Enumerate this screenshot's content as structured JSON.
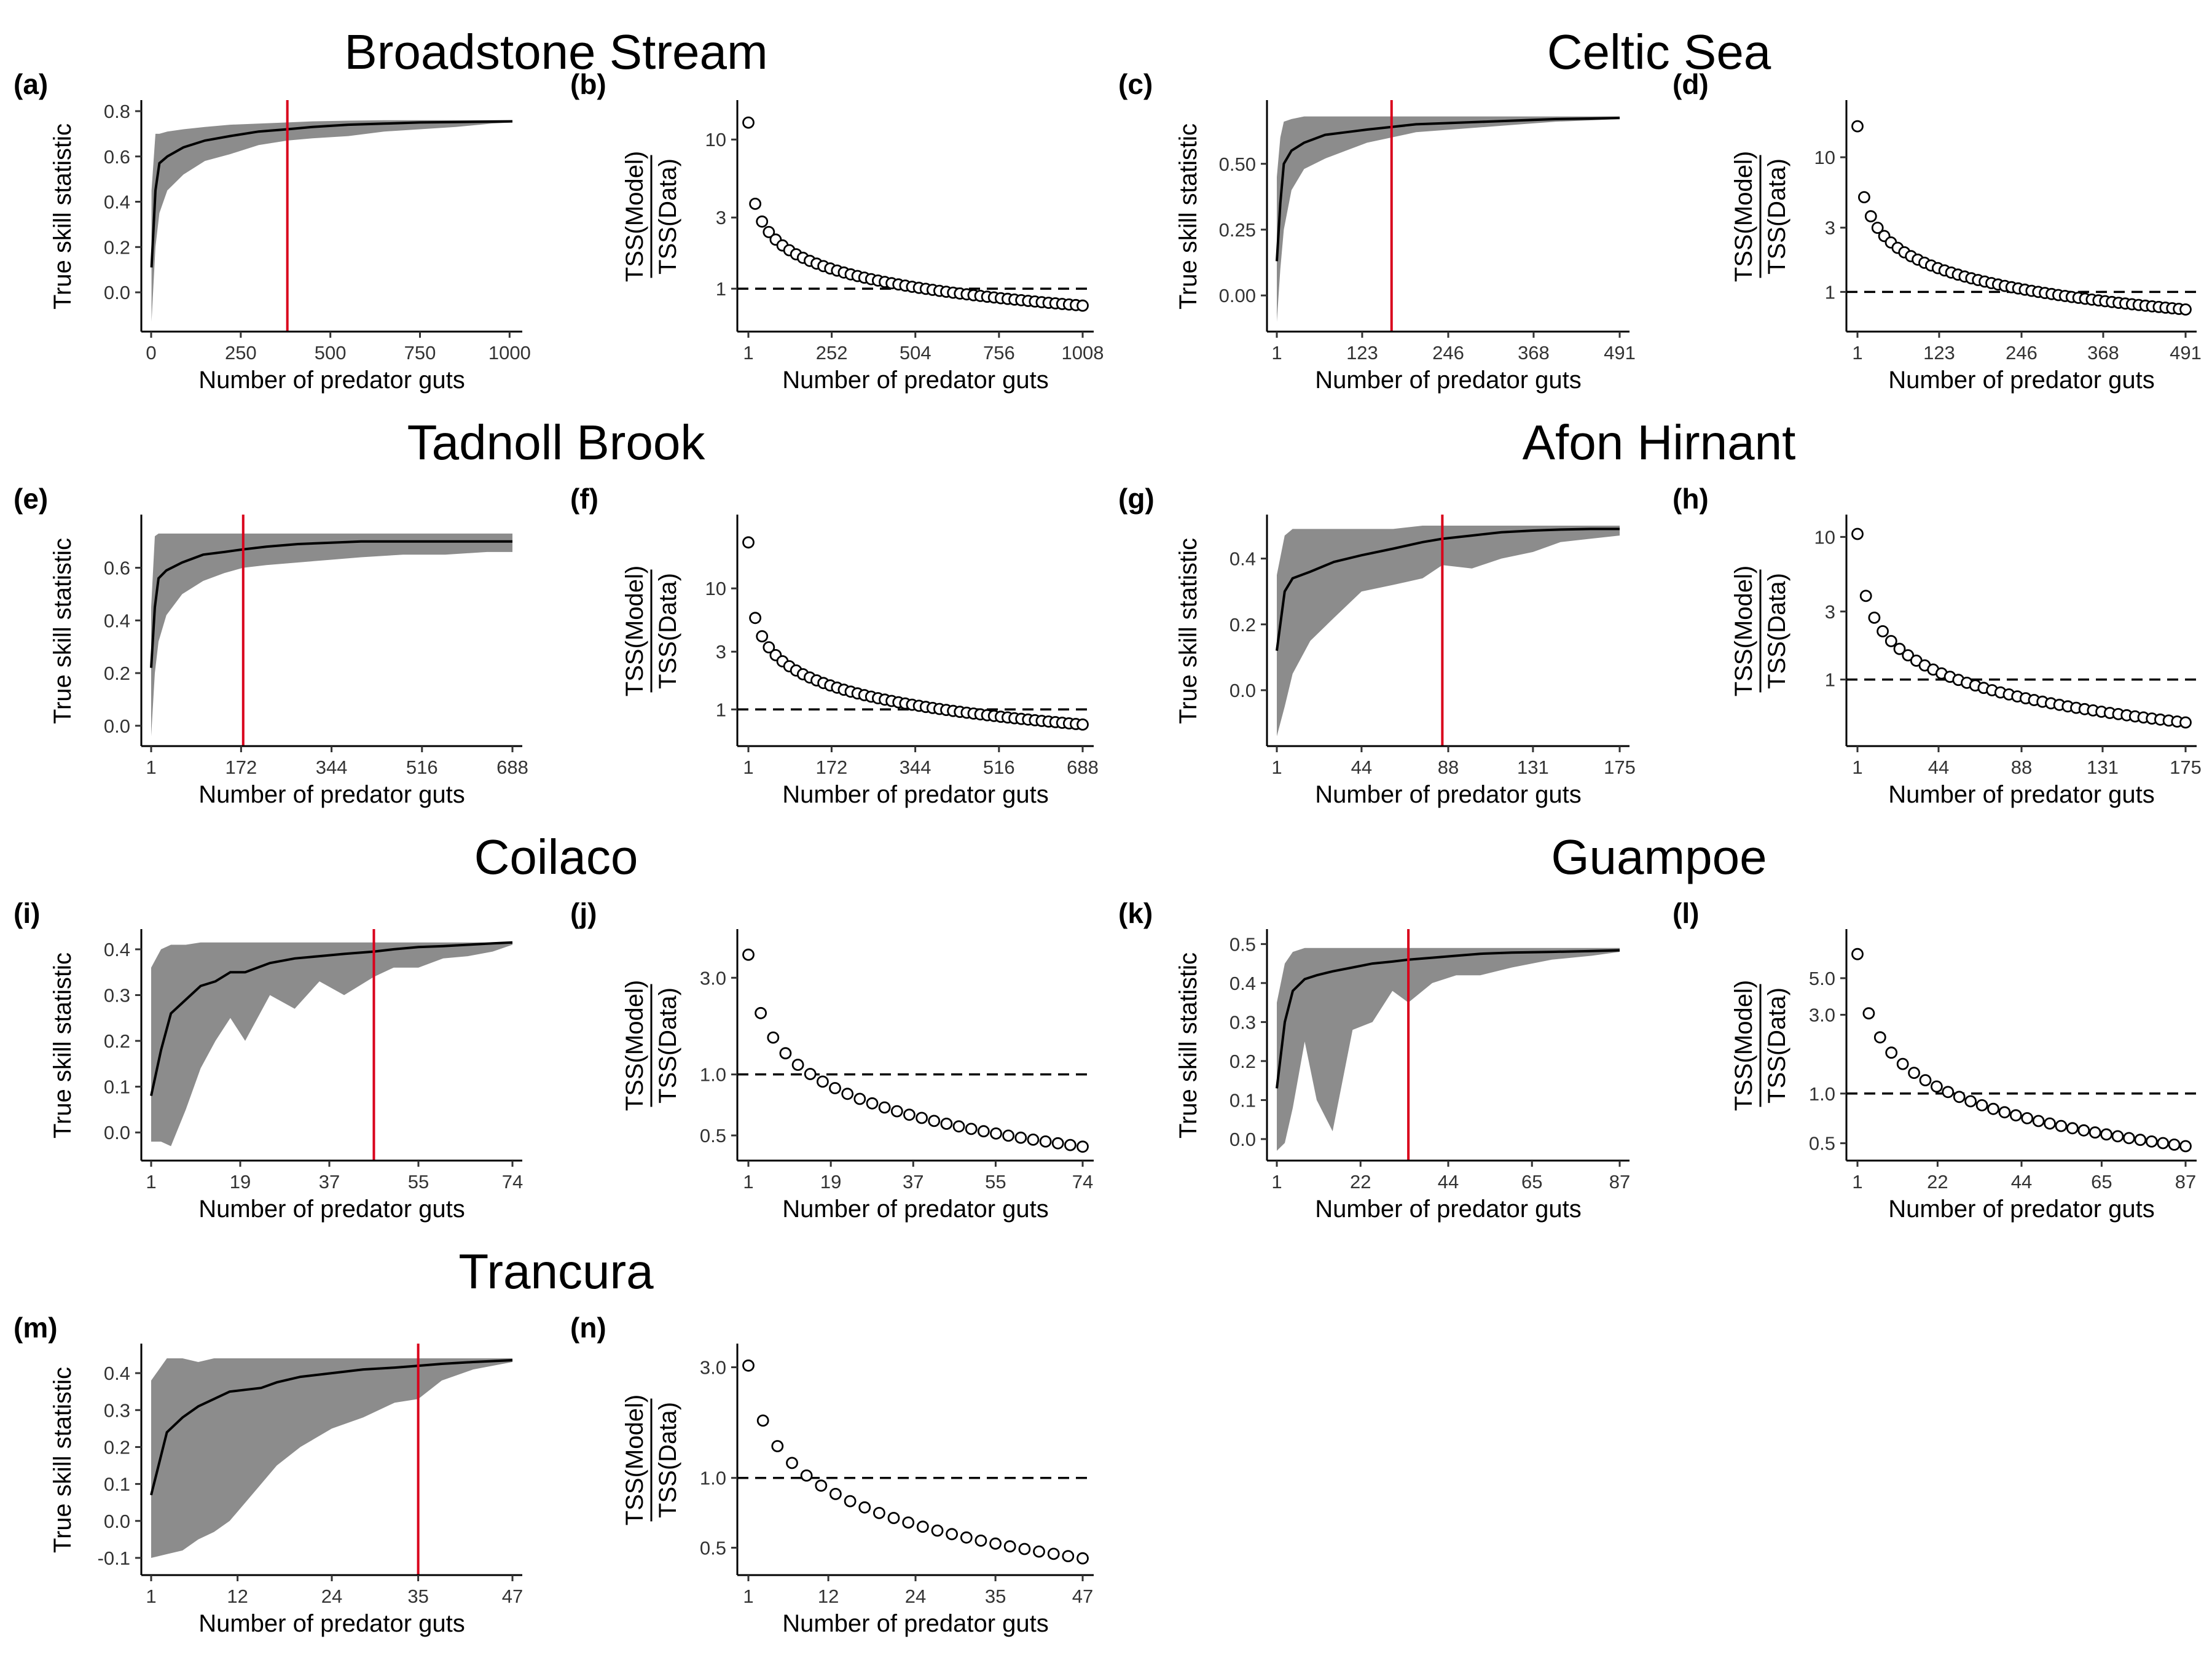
{
  "colors": {
    "ribbon": "#8c8c8c",
    "line": "#000000",
    "vline": "#d9001b",
    "dash": "#000000",
    "marker_fill": "#ffffff",
    "marker_stroke": "#000000"
  },
  "sites": [
    {
      "title": "Broadstone Stream",
      "tss": {
        "tag": "(a)",
        "xlabel": "Number of predator guts",
        "ylabel": "True skill statistic",
        "xlim": [
          0,
          1008
        ],
        "xticks": [
          0,
          250,
          500,
          750,
          1000
        ],
        "ylim": [
          -0.13,
          0.8
        ],
        "yticks": [
          0.0,
          0.2,
          0.4,
          0.6,
          0.8
        ],
        "ytick_labels": [
          "0.0",
          "0.2",
          "0.4",
          "0.6",
          "0.8"
        ],
        "vline": 380,
        "x": [
          1,
          12,
          23,
          45,
          90,
          150,
          220,
          300,
          380,
          450,
          550,
          650,
          750,
          850,
          950,
          1008
        ],
        "mean": [
          0.11,
          0.45,
          0.57,
          0.6,
          0.64,
          0.67,
          0.69,
          0.71,
          0.72,
          0.73,
          0.74,
          0.745,
          0.75,
          0.752,
          0.754,
          0.755
        ],
        "lower": [
          -0.13,
          0.2,
          0.35,
          0.45,
          0.52,
          0.58,
          0.61,
          0.65,
          0.67,
          0.68,
          0.69,
          0.71,
          0.72,
          0.73,
          0.745,
          0.75
        ],
        "upper": [
          0.45,
          0.7,
          0.7,
          0.71,
          0.72,
          0.73,
          0.74,
          0.745,
          0.75,
          0.755,
          0.758,
          0.76,
          0.76,
          0.76,
          0.76,
          0.76
        ]
      },
      "ratio": {
        "tag": "(b)",
        "xlabel": "Number of predator guts",
        "ylabel_top": "TSS(Model)",
        "ylabel_bottom": "TSS(Data)",
        "xlim": [
          1,
          1008
        ],
        "xticks": [
          1,
          252,
          504,
          756,
          1008
        ],
        "ylim": [
          0.6,
          15.5
        ],
        "yticks": [
          1,
          3,
          10
        ],
        "ytick_labels": [
          "1",
          "3",
          "10"
        ],
        "n_points": 50,
        "first": 13.0,
        "last": 0.77
      }
    },
    {
      "title": "Celtic Sea",
      "tss": {
        "tag": "(c)",
        "xlabel": "Number of predator guts",
        "ylabel": "True skill statistic",
        "xlim": [
          1,
          491
        ],
        "xticks": [
          1,
          123,
          246,
          368,
          491
        ],
        "ylim": [
          -0.1,
          0.7
        ],
        "yticks": [
          0.0,
          0.25,
          0.5
        ],
        "ytick_labels": [
          "0.00",
          "0.25",
          "0.50"
        ],
        "vline": 165,
        "x": [
          1,
          6,
          11,
          22,
          40,
          70,
          100,
          130,
          165,
          200,
          250,
          300,
          350,
          400,
          450,
          491
        ],
        "mean": [
          0.13,
          0.35,
          0.5,
          0.55,
          0.58,
          0.61,
          0.62,
          0.63,
          0.64,
          0.65,
          0.655,
          0.66,
          0.665,
          0.67,
          0.672,
          0.674
        ],
        "lower": [
          -0.1,
          0.1,
          0.25,
          0.4,
          0.48,
          0.52,
          0.55,
          0.58,
          0.6,
          0.62,
          0.63,
          0.64,
          0.65,
          0.66,
          0.665,
          0.67
        ],
        "upper": [
          0.45,
          0.6,
          0.66,
          0.67,
          0.68,
          0.68,
          0.68,
          0.68,
          0.68,
          0.68,
          0.68,
          0.68,
          0.68,
          0.68,
          0.68,
          0.68
        ]
      },
      "ratio": {
        "tag": "(d)",
        "xlabel": "Number of predator guts",
        "ylabel_top": "TSS(Model)",
        "ylabel_bottom": "TSS(Data)",
        "xlim": [
          1,
          491
        ],
        "xticks": [
          1,
          123,
          246,
          368,
          491
        ],
        "ylim": [
          0.6,
          22
        ],
        "yticks": [
          1,
          3,
          10
        ],
        "ytick_labels": [
          "1",
          "3",
          "10"
        ],
        "n_points": 50,
        "first": 17.0,
        "last": 0.74
      }
    },
    {
      "title": "Tadnoll Brook",
      "tss": {
        "tag": "(e)",
        "xlabel": "Number of predator guts",
        "ylabel": "True skill statistic",
        "xlim": [
          1,
          688
        ],
        "xticks": [
          1,
          172,
          344,
          516,
          688
        ],
        "ylim": [
          -0.04,
          0.76
        ],
        "yticks": [
          0.0,
          0.2,
          0.4,
          0.6
        ],
        "ytick_labels": [
          "0.0",
          "0.2",
          "0.4",
          "0.6"
        ],
        "vline": 176,
        "x": [
          1,
          8,
          15,
          30,
          60,
          100,
          140,
          176,
          220,
          280,
          340,
          400,
          480,
          560,
          640,
          688
        ],
        "mean": [
          0.22,
          0.45,
          0.56,
          0.59,
          0.62,
          0.65,
          0.66,
          0.67,
          0.68,
          0.69,
          0.695,
          0.7,
          0.7,
          0.7,
          0.7,
          0.7
        ],
        "lower": [
          -0.04,
          0.2,
          0.32,
          0.42,
          0.5,
          0.55,
          0.58,
          0.6,
          0.61,
          0.62,
          0.63,
          0.64,
          0.65,
          0.65,
          0.66,
          0.66
        ],
        "upper": [
          0.45,
          0.72,
          0.73,
          0.73,
          0.73,
          0.73,
          0.73,
          0.73,
          0.73,
          0.73,
          0.73,
          0.73,
          0.73,
          0.73,
          0.73,
          0.73
        ]
      },
      "ratio": {
        "tag": "(f)",
        "xlabel": "Number of predator guts",
        "ylabel_top": "TSS(Model)",
        "ylabel_bottom": "TSS(Data)",
        "xlim": [
          1,
          688
        ],
        "xticks": [
          1,
          172,
          344,
          516,
          688
        ],
        "ylim": [
          0.6,
          33
        ],
        "yticks": [
          1,
          3,
          10
        ],
        "ytick_labels": [
          "1",
          "3",
          "10"
        ],
        "n_points": 50,
        "first": 24.0,
        "last": 0.75
      }
    },
    {
      "title": "Afon Hirnant",
      "tss": {
        "tag": "(g)",
        "xlabel": "Number of predator guts",
        "ylabel": "True skill statistic",
        "xlim": [
          1,
          175
        ],
        "xticks": [
          1,
          44,
          88,
          131,
          175
        ],
        "ylim": [
          -0.14,
          0.5
        ],
        "yticks": [
          0.0,
          0.2,
          0.4
        ],
        "ytick_labels": [
          "0.0",
          "0.2",
          "0.4"
        ],
        "vline": 85,
        "x": [
          1,
          5,
          9,
          18,
          30,
          44,
          60,
          75,
          85,
          100,
          115,
          131,
          145,
          160,
          175
        ],
        "mean": [
          0.12,
          0.3,
          0.34,
          0.36,
          0.39,
          0.41,
          0.43,
          0.45,
          0.46,
          0.47,
          0.48,
          0.485,
          0.488,
          0.49,
          0.49
        ],
        "lower": [
          -0.14,
          -0.05,
          0.05,
          0.15,
          0.22,
          0.3,
          0.32,
          0.34,
          0.38,
          0.37,
          0.4,
          0.42,
          0.45,
          0.46,
          0.47
        ],
        "upper": [
          0.35,
          0.47,
          0.49,
          0.49,
          0.49,
          0.49,
          0.49,
          0.5,
          0.5,
          0.5,
          0.5,
          0.5,
          0.5,
          0.5,
          0.5
        ]
      },
      "ratio": {
        "tag": "(h)",
        "xlabel": "Number of predator guts",
        "ylabel_top": "TSS(Model)",
        "ylabel_bottom": "TSS(Data)",
        "xlim": [
          1,
          175
        ],
        "xticks": [
          1,
          44,
          88,
          131,
          175
        ],
        "ylim": [
          0.4,
          12
        ],
        "yticks": [
          1,
          3,
          10
        ],
        "ytick_labels": [
          "1",
          "3",
          "10"
        ],
        "n_points": 40,
        "first": 10.5,
        "last": 0.5
      }
    },
    {
      "title": "Coilaco",
      "tss": {
        "tag": "(i)",
        "xlabel": "Number of predator guts",
        "ylabel": "True skill statistic",
        "xlim": [
          1,
          74
        ],
        "xticks": [
          1,
          19,
          37,
          55,
          74
        ],
        "ylim": [
          -0.04,
          0.42
        ],
        "yticks": [
          0.0,
          0.1,
          0.2,
          0.3,
          0.4
        ],
        "ytick_labels": [
          "0.0",
          "0.1",
          "0.2",
          "0.3",
          "0.4"
        ],
        "vline": 46,
        "x": [
          1,
          3,
          5,
          8,
          11,
          14,
          17,
          20,
          25,
          30,
          35,
          40,
          46,
          50,
          55,
          60,
          65,
          70,
          74
        ],
        "mean": [
          0.08,
          0.18,
          0.26,
          0.29,
          0.32,
          0.33,
          0.35,
          0.35,
          0.37,
          0.38,
          0.385,
          0.39,
          0.395,
          0.4,
          0.405,
          0.407,
          0.41,
          0.413,
          0.415
        ],
        "lower": [
          -0.02,
          -0.02,
          -0.03,
          0.05,
          0.14,
          0.2,
          0.25,
          0.2,
          0.3,
          0.27,
          0.33,
          0.3,
          0.34,
          0.36,
          0.36,
          0.38,
          0.385,
          0.395,
          0.41
        ],
        "upper": [
          0.36,
          0.4,
          0.41,
          0.41,
          0.415,
          0.415,
          0.415,
          0.415,
          0.415,
          0.415,
          0.415,
          0.415,
          0.415,
          0.415,
          0.415,
          0.415,
          0.415,
          0.415,
          0.415
        ]
      },
      "ratio": {
        "tag": "(j)",
        "xlabel": "Number of predator guts",
        "ylabel_top": "TSS(Model)",
        "ylabel_bottom": "TSS(Data)",
        "xlim": [
          1,
          74
        ],
        "xticks": [
          1,
          19,
          37,
          55,
          74
        ],
        "ylim": [
          0.42,
          4.6
        ],
        "yticks": [
          0.5,
          1.0,
          3.0
        ],
        "ytick_labels": [
          "0.5",
          "1.0",
          "3.0"
        ],
        "n_points": 28,
        "first": 3.9,
        "last": 0.44
      }
    },
    {
      "title": "Guampoe",
      "tss": {
        "tag": "(k)",
        "xlabel": "Number of predator guts",
        "ylabel": "True skill statistic",
        "xlim": [
          1,
          87
        ],
        "xticks": [
          1,
          22,
          44,
          65,
          87
        ],
        "ylim": [
          -0.03,
          0.51
        ],
        "yticks": [
          0.0,
          0.1,
          0.2,
          0.3,
          0.4,
          0.5
        ],
        "ytick_labels": [
          "0.0",
          "0.1",
          "0.2",
          "0.3",
          "0.4",
          "0.5"
        ],
        "vline": 34,
        "x": [
          1,
          3,
          5,
          8,
          11,
          15,
          20,
          25,
          30,
          34,
          40,
          46,
          52,
          60,
          70,
          80,
          87
        ],
        "mean": [
          0.13,
          0.3,
          0.38,
          0.41,
          0.42,
          0.43,
          0.44,
          0.45,
          0.455,
          0.46,
          0.465,
          0.47,
          0.475,
          0.478,
          0.48,
          0.482,
          0.484
        ],
        "lower": [
          -0.03,
          -0.01,
          0.08,
          0.25,
          0.1,
          0.02,
          0.28,
          0.3,
          0.38,
          0.35,
          0.4,
          0.42,
          0.42,
          0.44,
          0.46,
          0.47,
          0.48
        ],
        "upper": [
          0.35,
          0.45,
          0.48,
          0.49,
          0.49,
          0.49,
          0.49,
          0.49,
          0.49,
          0.49,
          0.49,
          0.49,
          0.49,
          0.49,
          0.49,
          0.49,
          0.49
        ]
      },
      "ratio": {
        "tag": "(l)",
        "xlabel": "Number of predator guts",
        "ylabel_top": "TSS(Model)",
        "ylabel_bottom": "TSS(Data)",
        "xlim": [
          1,
          87
        ],
        "xticks": [
          1,
          22,
          44,
          65,
          87
        ],
        "ylim": [
          0.45,
          8.5
        ],
        "yticks": [
          0.5,
          1.0,
          3.0,
          5.0
        ],
        "ytick_labels": [
          "0.5",
          "1.0",
          "3.0",
          "5.0"
        ],
        "n_points": 30,
        "first": 7.0,
        "last": 0.48
      }
    },
    {
      "title": "Trancura",
      "tss": {
        "tag": "(m)",
        "xlabel": "Number of predator guts",
        "ylabel": "True skill statistic",
        "xlim": [
          1,
          47
        ],
        "xticks": [
          1,
          12,
          24,
          35,
          47
        ],
        "ylim": [
          -0.12,
          0.45
        ],
        "yticks": [
          -0.1,
          0.0,
          0.1,
          0.2,
          0.3,
          0.4
        ],
        "ytick_labels": [
          "-0.1",
          "0.0",
          "0.1",
          "0.2",
          "0.3",
          "0.4"
        ],
        "vline": 35,
        "x": [
          1,
          3,
          5,
          7,
          9,
          11,
          13,
          15,
          17,
          20,
          24,
          28,
          32,
          35,
          38,
          42,
          47
        ],
        "mean": [
          0.07,
          0.24,
          0.28,
          0.31,
          0.33,
          0.35,
          0.355,
          0.36,
          0.375,
          0.39,
          0.4,
          0.41,
          0.415,
          0.42,
          0.425,
          0.43,
          0.435
        ],
        "lower": [
          -0.1,
          -0.09,
          -0.08,
          -0.05,
          -0.03,
          0.0,
          0.05,
          0.1,
          0.15,
          0.2,
          0.25,
          0.28,
          0.32,
          0.33,
          0.38,
          0.41,
          0.43
        ],
        "upper": [
          0.38,
          0.44,
          0.44,
          0.43,
          0.44,
          0.44,
          0.44,
          0.44,
          0.44,
          0.44,
          0.44,
          0.44,
          0.44,
          0.44,
          0.44,
          0.44,
          0.44
        ]
      },
      "ratio": {
        "tag": "(n)",
        "xlabel": "Number of predator guts",
        "ylabel_top": "TSS(Model)",
        "ylabel_bottom": "TSS(Data)",
        "xlim": [
          1,
          47
        ],
        "xticks": [
          1,
          12,
          24,
          35,
          47
        ],
        "ylim": [
          0.42,
          3.4
        ],
        "yticks": [
          0.5,
          1.0,
          3.0
        ],
        "ytick_labels": [
          "0.5",
          "1.0",
          "3.0"
        ],
        "n_points": 24,
        "first": 3.05,
        "last": 0.45
      }
    }
  ]
}
